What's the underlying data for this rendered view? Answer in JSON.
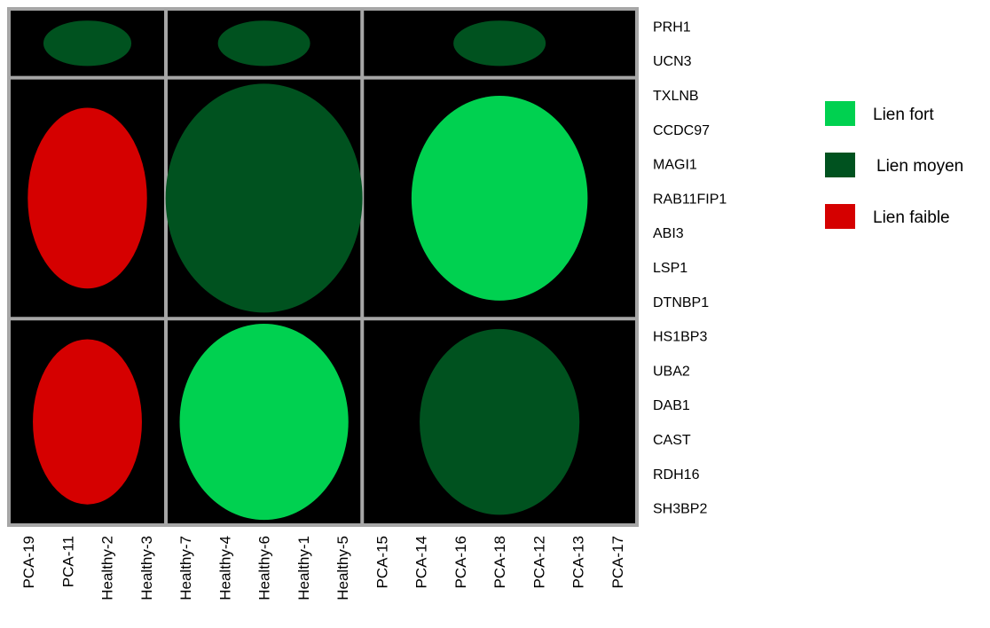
{
  "chart_data": {
    "type": "heatmap",
    "rows": [
      "PRH1",
      "UCN3",
      "TXLNB",
      "CCDC97",
      "MAGI1",
      "RAB11FIP1",
      "ABI3",
      "LSP1",
      "DTNBP1",
      "HS1BP3",
      "UBA2",
      "DAB1",
      "CAST",
      "RDH16",
      "SH3BP2"
    ],
    "columns": [
      "PCA-19",
      "PCA-11",
      "Healthy-2",
      "Healthy-3",
      "Healthy-7",
      "Healthy-4",
      "Healthy-6",
      "Healthy-1",
      "Healthy-5",
      "PCA-15",
      "PCA-14",
      "PCA-16",
      "PCA-18",
      "PCA-12",
      "PCA-13",
      "PCA-17"
    ],
    "row_groups": [
      {
        "rows": [
          "PRH1",
          "UCN3"
        ]
      },
      {
        "rows": [
          "TXLNB",
          "CCDC97",
          "MAGI1",
          "RAB11FIP1",
          "ABI3",
          "LSP1",
          "DTNBP1"
        ]
      },
      {
        "rows": [
          "HS1BP3",
          "UBA2",
          "DAB1",
          "CAST",
          "RDH16",
          "SH3BP2"
        ]
      }
    ],
    "column_groups": [
      {
        "columns": [
          "PCA-19",
          "PCA-11",
          "Healthy-2",
          "Healthy-3"
        ]
      },
      {
        "columns": [
          "Healthy-7",
          "Healthy-4",
          "Healthy-6",
          "Healthy-1",
          "Healthy-5"
        ]
      },
      {
        "columns": [
          "PCA-15",
          "PCA-14",
          "PCA-16",
          "PCA-18",
          "PCA-12",
          "PCA-13",
          "PCA-17"
        ]
      }
    ],
    "cells": [
      {
        "row_group": 0,
        "col_group": 0,
        "level": "moyen",
        "relative_size": 0.45
      },
      {
        "row_group": 0,
        "col_group": 1,
        "level": "moyen",
        "relative_size": 0.45
      },
      {
        "row_group": 0,
        "col_group": 2,
        "level": "moyen",
        "relative_size": 0.45
      },
      {
        "row_group": 1,
        "col_group": 0,
        "level": "faible",
        "relative_size": 0.75
      },
      {
        "row_group": 1,
        "col_group": 1,
        "level": "moyen",
        "relative_size": 0.95
      },
      {
        "row_group": 1,
        "col_group": 2,
        "level": "fort",
        "relative_size": 0.85
      },
      {
        "row_group": 2,
        "col_group": 0,
        "level": "faible",
        "relative_size": 0.8
      },
      {
        "row_group": 2,
        "col_group": 1,
        "level": "fort",
        "relative_size": 0.95
      },
      {
        "row_group": 2,
        "col_group": 2,
        "level": "moyen",
        "relative_size": 0.9
      }
    ],
    "legend": {
      "placement": "right",
      "entries": [
        {
          "key": "fort",
          "label": "Lien fort",
          "color": "#00d150"
        },
        {
          "key": "moyen",
          "label": "Lien moyen",
          "color": "#00521f"
        },
        {
          "key": "faible",
          "label": "Lien faible",
          "color": "#d50000"
        }
      ]
    },
    "background_color": "#000000",
    "grid_color": "#a6a6a6"
  }
}
